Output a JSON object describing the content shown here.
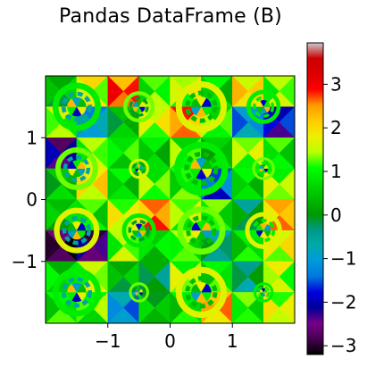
{
  "chart_data": {
    "type": "heatmap",
    "title": "Pandas DataFrame (B)",
    "xlabel": "",
    "ylabel": "",
    "xlim": [
      -2,
      2
    ],
    "ylim": [
      -2,
      2
    ],
    "x_ticks": [
      -1,
      0,
      1
    ],
    "x_tick_labels": [
      "−1",
      "0",
      "1"
    ],
    "y_ticks": [
      -1,
      0,
      1
    ],
    "y_tick_labels": [
      "−1",
      "0",
      "1"
    ],
    "colormap": "nipy_spectral",
    "colorbar": {
      "vmin": -3.2,
      "vmax": 3.95,
      "ticks": [
        -3,
        -2,
        -1,
        0,
        1,
        2,
        3
      ],
      "tick_labels": [
        "−3",
        "−2",
        "−1",
        "0",
        "1",
        "2",
        "3"
      ]
    },
    "cells_per_row": 8,
    "cell_values": [
      [
        0.2,
        1.6,
        2.6,
        1.0,
        1.4,
        0.6,
        1.9,
        1.2
      ],
      [
        1.2,
        -1.0,
        0.2,
        1.5,
        2.4,
        1.0,
        -1.2,
        -2.0
      ],
      [
        -2.4,
        1.2,
        0.8,
        0.5,
        1.0,
        0.4,
        1.3,
        0.8
      ],
      [
        0.3,
        1.8,
        0.6,
        1.1,
        0.9,
        -1.6,
        0.6,
        1.3
      ],
      [
        0.4,
        0.8,
        1.5,
        2.4,
        1.2,
        0.9,
        -0.2,
        2.2
      ],
      [
        -3.0,
        -2.6,
        1.2,
        0.6,
        1.0,
        -0.5,
        0.7,
        1.6
      ],
      [
        0.6,
        1.3,
        0.2,
        -0.2,
        1.3,
        0.8,
        -0.4,
        1.4
      ],
      [
        0.8,
        1.0,
        -1.2,
        0.3,
        0.7,
        2.2,
        0.9,
        1.5
      ]
    ],
    "rings": [
      {
        "x": -1.5,
        "y": 1.5,
        "r": 0.34
      },
      {
        "x": -0.5,
        "y": 1.5,
        "r": 0.22
      },
      {
        "x": 0.5,
        "y": 1.5,
        "r": 0.36
      },
      {
        "x": 1.5,
        "y": 1.5,
        "r": 0.24
      },
      {
        "x": -1.5,
        "y": 0.5,
        "r": 0.3
      },
      {
        "x": -0.5,
        "y": 0.5,
        "r": 0.14
      },
      {
        "x": 0.5,
        "y": 0.5,
        "r": 0.38
      },
      {
        "x": 1.5,
        "y": 0.5,
        "r": 0.16
      },
      {
        "x": -1.5,
        "y": -0.5,
        "r": 0.32
      },
      {
        "x": -0.5,
        "y": -0.5,
        "r": 0.24
      },
      {
        "x": 0.5,
        "y": -0.5,
        "r": 0.34
      },
      {
        "x": 1.5,
        "y": -0.5,
        "r": 0.26
      },
      {
        "x": -1.5,
        "y": -1.5,
        "r": 0.34
      },
      {
        "x": -0.5,
        "y": -1.5,
        "r": 0.14
      },
      {
        "x": 0.5,
        "y": -1.5,
        "r": 0.36
      },
      {
        "x": 1.5,
        "y": -1.5,
        "r": 0.14
      }
    ]
  }
}
